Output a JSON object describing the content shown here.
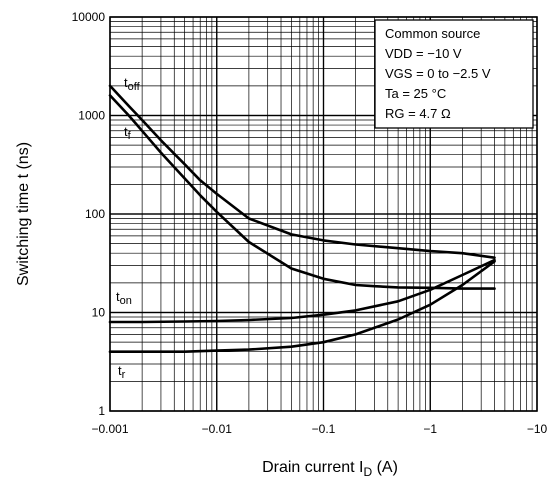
{
  "chart_data": {
    "type": "line",
    "xlabel": "Drain current",
    "xlabel_symbol": "I",
    "xlabel_subscript": "D",
    "xlabel_unit": "(A)",
    "ylabel": "Switching time    t    (ns)",
    "x_scale": "log",
    "y_scale": "log",
    "x_axis_direction": "negative current, magnitude increasing to the right",
    "xlim": [
      -0.001,
      -10
    ],
    "ylim": [
      1,
      10000
    ],
    "grid": true,
    "x_ticks": [
      {
        "value": -0.001,
        "label": "−0.001"
      },
      {
        "value": -0.01,
        "label": "−0.01"
      },
      {
        "value": -0.1,
        "label": "−0.1"
      },
      {
        "value": -1,
        "label": "−1"
      },
      {
        "value": -10,
        "label": "−10"
      }
    ],
    "y_ticks": [
      {
        "value": 1,
        "label": "1"
      },
      {
        "value": 10,
        "label": "10"
      },
      {
        "value": 100,
        "label": "100"
      },
      {
        "value": 1000,
        "label": "1000"
      },
      {
        "value": 10000,
        "label": "10000"
      }
    ],
    "conditions": {
      "placement": "top-right",
      "lines": [
        "Common source",
        "VDD = −10 V",
        "VGS = 0 to −2.5 V",
        "Ta = 25 °C",
        "RG = 4.7 Ω"
      ]
    },
    "series": [
      {
        "name": "toff",
        "label_main": "t",
        "label_sub": "off",
        "x": [
          -0.001,
          -0.0015,
          -0.002,
          -0.003,
          -0.005,
          -0.007,
          -0.01,
          -0.02,
          -0.05,
          -0.1,
          -0.2,
          -0.5,
          -1,
          -2,
          -4
        ],
        "y": [
          2000,
          1250,
          900,
          560,
          320,
          220,
          160,
          90,
          62,
          54,
          49,
          45,
          42,
          40,
          36
        ]
      },
      {
        "name": "tf",
        "label_main": "t",
        "label_sub": "f",
        "x": [
          -0.001,
          -0.0015,
          -0.002,
          -0.003,
          -0.005,
          -0.007,
          -0.01,
          -0.02,
          -0.05,
          -0.1,
          -0.2,
          -0.3,
          -0.5,
          -1,
          -2,
          -4
        ],
        "y": [
          1600,
          1000,
          700,
          420,
          230,
          155,
          105,
          52,
          28,
          22,
          19,
          18.5,
          18,
          17.8,
          17.5,
          17.5
        ]
      },
      {
        "name": "ton",
        "label_main": "t",
        "label_sub": "on",
        "x": [
          -0.001,
          -0.002,
          -0.005,
          -0.01,
          -0.02,
          -0.05,
          -0.1,
          -0.2,
          -0.5,
          -1,
          -2,
          -4
        ],
        "y": [
          8,
          8,
          8.1,
          8.2,
          8.4,
          8.8,
          9.5,
          10.5,
          13,
          17,
          24,
          34
        ]
      },
      {
        "name": "tr",
        "label_main": "t",
        "label_sub": "r",
        "x": [
          -0.001,
          -0.002,
          -0.005,
          -0.01,
          -0.02,
          -0.05,
          -0.1,
          -0.2,
          -0.5,
          -1,
          -2,
          -4
        ],
        "y": [
          4,
          4,
          4,
          4.1,
          4.2,
          4.5,
          5,
          6,
          8.5,
          12,
          19,
          33
        ]
      }
    ]
  }
}
